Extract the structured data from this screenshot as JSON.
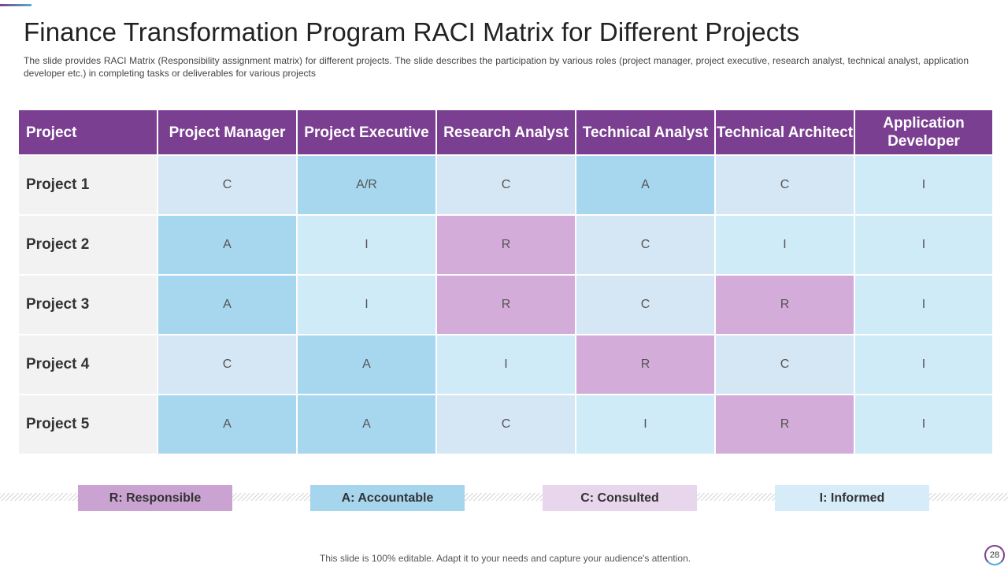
{
  "title": "Finance Transformation Program RACI Matrix for Different Projects",
  "subtitle": "The slide provides RACI Matrix (Responsibility assignment matrix) for different projects. The slide describes the participation by various roles (project manager, project executive, research analyst, technical analyst, application developer etc.) in completing tasks or deliverables for various projects",
  "table": {
    "headers": [
      "Project",
      "Project Manager",
      "Project Executive",
      "Research Analyst",
      "Technical Analyst",
      "Technical Architect",
      "Application Developer"
    ],
    "rows": [
      {
        "name": "Project 1",
        "cells": [
          "C",
          "A/R",
          "C",
          "A",
          "C",
          "I"
        ]
      },
      {
        "name": "Project 2",
        "cells": [
          "A",
          "I",
          "R",
          "C",
          "I",
          "I"
        ]
      },
      {
        "name": "Project 3",
        "cells": [
          "A",
          "I",
          "R",
          "C",
          "R",
          "I"
        ]
      },
      {
        "name": "Project 4",
        "cells": [
          "C",
          "A",
          "I",
          "R",
          "C",
          "I"
        ]
      },
      {
        "name": "Project 5",
        "cells": [
          "A",
          "A",
          "C",
          "I",
          "R",
          "I"
        ]
      }
    ]
  },
  "legend": {
    "responsible": "R: Responsible",
    "accountable": "A: Accountable",
    "consulted": "C: Consulted",
    "informed": "I: Informed"
  },
  "footer": "This slide is 100% editable. Adapt it to your needs and capture your audience's attention.",
  "page_number": "28",
  "colors": {
    "header_purple": "#7b3f91",
    "accountable_blue": "#a7d7ef",
    "consulted_blue": "#d5e6f4",
    "informed_blue": "#d0ebf8",
    "responsible_purple": "#d4acd9"
  }
}
